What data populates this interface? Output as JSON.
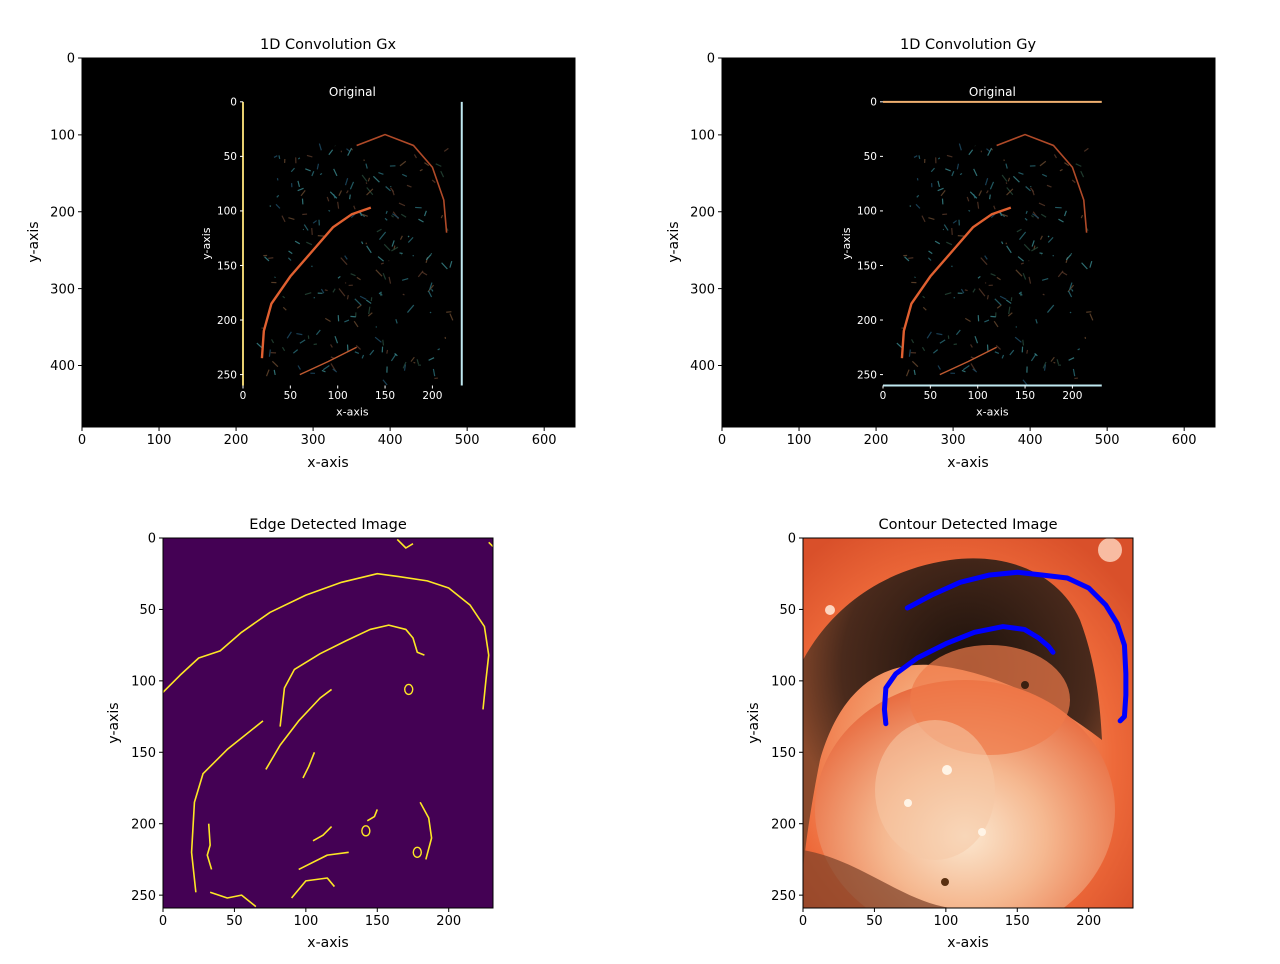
{
  "colors": {
    "background": "#ffffff",
    "axis": "#000000",
    "black_frame": "#000000",
    "viridis_low": "#440154",
    "viridis_high": "#fde725",
    "contour": "#0000ff",
    "tissue_orange": "#f07040",
    "tissue_dark": "#3a2418",
    "tissue_light": "#f4d8b8",
    "edge_orange": "#e06030",
    "edge_cyan": "#3fc0c8"
  },
  "chart_data": [
    {
      "type": "heatmap",
      "title": "1D Convolution Gx",
      "xlabel": "x-axis",
      "ylabel": "y-axis",
      "xlim": [
        0,
        640
      ],
      "ylim": [
        480,
        0
      ],
      "x_ticks": [
        0,
        100,
        200,
        300,
        400,
        500,
        600
      ],
      "y_ticks": [
        0,
        100,
        200,
        300,
        400
      ],
      "x_tick_labels": [
        "0",
        "100",
        "200",
        "300",
        "400",
        "500",
        "600"
      ],
      "y_tick_labels": [
        "0",
        "100",
        "200",
        "300",
        "400"
      ],
      "embedded_plot": {
        "title": "Original",
        "xlabel": "x-axis",
        "ylabel": "y-axis",
        "xlim": [
          0,
          231
        ],
        "ylim": [
          260,
          0
        ],
        "x_ticks": [
          0,
          50,
          100,
          150,
          200
        ],
        "y_ticks": [
          0,
          50,
          100,
          150,
          200,
          250
        ],
        "x_tick_labels": [
          "0",
          "50",
          "100",
          "150",
          "200"
        ],
        "y_tick_labels": [
          "0",
          "50",
          "100",
          "150",
          "200",
          "250"
        ],
        "extent_outer": [
          165,
          495,
          55,
          428
        ],
        "edge_lines": "vertical"
      }
    },
    {
      "type": "heatmap",
      "title": "1D Convolution Gy",
      "xlabel": "x-axis",
      "ylabel": "y-axis",
      "xlim": [
        0,
        640
      ],
      "ylim": [
        480,
        0
      ],
      "x_ticks": [
        0,
        100,
        200,
        300,
        400,
        500,
        600
      ],
      "y_ticks": [
        0,
        100,
        200,
        300,
        400
      ],
      "x_tick_labels": [
        "0",
        "100",
        "200",
        "300",
        "400",
        "500",
        "600"
      ],
      "y_tick_labels": [
        "0",
        "100",
        "200",
        "300",
        "400"
      ],
      "embedded_plot": {
        "title": "Original",
        "xlabel": "x-axis",
        "ylabel": "y-axis",
        "xlim": [
          0,
          231
        ],
        "ylim": [
          260,
          0
        ],
        "x_ticks": [
          0,
          50,
          100,
          150,
          200
        ],
        "y_ticks": [
          0,
          50,
          100,
          150,
          200,
          250
        ],
        "x_tick_labels": [
          "0",
          "50",
          "100",
          "150",
          "200"
        ],
        "y_tick_labels": [
          "0",
          "50",
          "100",
          "150",
          "200",
          "250"
        ],
        "extent_outer": [
          165,
          495,
          55,
          428
        ],
        "edge_lines": "horizontal"
      }
    },
    {
      "type": "heatmap",
      "title": "Edge Detected Image",
      "xlabel": "x-axis",
      "ylabel": "y-axis",
      "xlim": [
        0,
        231
      ],
      "ylim": [
        259,
        0
      ],
      "x_ticks": [
        0,
        50,
        100,
        150,
        200
      ],
      "y_ticks": [
        0,
        50,
        100,
        150,
        200,
        250
      ],
      "x_tick_labels": [
        "0",
        "50",
        "100",
        "150",
        "200"
      ],
      "y_tick_labels": [
        "0",
        "50",
        "100",
        "150",
        "200",
        "250"
      ],
      "edges": [
        [
          [
            0,
            108
          ],
          [
            12,
            96
          ],
          [
            25,
            84
          ],
          [
            40,
            79
          ],
          [
            55,
            66
          ],
          [
            75,
            52
          ],
          [
            100,
            40
          ],
          [
            125,
            31
          ],
          [
            150,
            25
          ],
          [
            165,
            27
          ],
          [
            185,
            30
          ],
          [
            200,
            35
          ],
          [
            215,
            47
          ],
          [
            225,
            62
          ],
          [
            228,
            82
          ],
          [
            226,
            100
          ],
          [
            224,
            120
          ]
        ],
        [
          [
            82,
            132
          ],
          [
            85,
            105
          ],
          [
            92,
            92
          ],
          [
            110,
            81
          ],
          [
            128,
            72
          ],
          [
            145,
            64
          ],
          [
            158,
            61
          ],
          [
            170,
            64
          ],
          [
            175,
            70
          ],
          [
            178,
            80
          ],
          [
            183,
            82
          ]
        ],
        [
          [
            72,
            162
          ],
          [
            82,
            145
          ],
          [
            95,
            128
          ],
          [
            110,
            112
          ],
          [
            118,
            106
          ]
        ],
        [
          [
            23,
            248
          ],
          [
            20,
            220
          ],
          [
            22,
            185
          ],
          [
            28,
            165
          ],
          [
            45,
            148
          ],
          [
            70,
            128
          ]
        ],
        [
          [
            95,
            232
          ],
          [
            115,
            222
          ],
          [
            130,
            220
          ]
        ],
        [
          [
            90,
            252
          ],
          [
            100,
            240
          ],
          [
            115,
            238
          ],
          [
            120,
            244
          ]
        ],
        [
          [
            33,
            248
          ],
          [
            45,
            252
          ],
          [
            55,
            250
          ],
          [
            65,
            258
          ]
        ],
        [
          [
            105,
            212
          ],
          [
            112,
            208
          ],
          [
            118,
            202
          ]
        ],
        [
          [
            180,
            185
          ],
          [
            186,
            196
          ],
          [
            188,
            210
          ],
          [
            184,
            225
          ]
        ],
        [
          [
            32,
            200
          ],
          [
            33,
            215
          ],
          [
            31,
            222
          ],
          [
            34,
            232
          ]
        ],
        [
          [
            98,
            168
          ],
          [
            102,
            160
          ],
          [
            106,
            150
          ]
        ],
        [
          [
            143,
            198
          ],
          [
            148,
            195
          ],
          [
            150,
            190
          ]
        ],
        [
          [
            164,
            1
          ],
          [
            170,
            7
          ],
          [
            175,
            4
          ]
        ],
        [
          [
            228,
            3
          ],
          [
            231,
            6
          ]
        ]
      ],
      "small_loops": [
        [
          142,
          205
        ],
        [
          172,
          106
        ],
        [
          178,
          220
        ]
      ]
    },
    {
      "type": "heatmap",
      "title": "Contour Detected Image",
      "xlabel": "x-axis",
      "ylabel": "y-axis",
      "xlim": [
        0,
        231
      ],
      "ylim": [
        259,
        0
      ],
      "x_ticks": [
        0,
        50,
        100,
        150,
        200
      ],
      "y_ticks": [
        0,
        50,
        100,
        150,
        200,
        250
      ],
      "x_tick_labels": [
        "0",
        "50",
        "100",
        "150",
        "200"
      ],
      "y_tick_labels": [
        "0",
        "50",
        "100",
        "150",
        "200",
        "250"
      ],
      "contours": [
        [
          [
            73,
            49
          ],
          [
            90,
            40
          ],
          [
            110,
            31
          ],
          [
            130,
            26
          ],
          [
            150,
            24
          ],
          [
            168,
            26
          ],
          [
            185,
            28
          ],
          [
            200,
            35
          ],
          [
            212,
            47
          ],
          [
            220,
            60
          ],
          [
            225,
            75
          ],
          [
            226,
            95
          ],
          [
            226,
            110
          ],
          [
            225,
            125
          ],
          [
            222,
            128
          ]
        ],
        [
          [
            58,
            130
          ],
          [
            57,
            120
          ],
          [
            58,
            105
          ],
          [
            65,
            95
          ],
          [
            80,
            84
          ],
          [
            100,
            74
          ],
          [
            120,
            66
          ],
          [
            140,
            62
          ],
          [
            155,
            64
          ],
          [
            165,
            70
          ],
          [
            172,
            76
          ],
          [
            175,
            80
          ]
        ]
      ]
    }
  ]
}
